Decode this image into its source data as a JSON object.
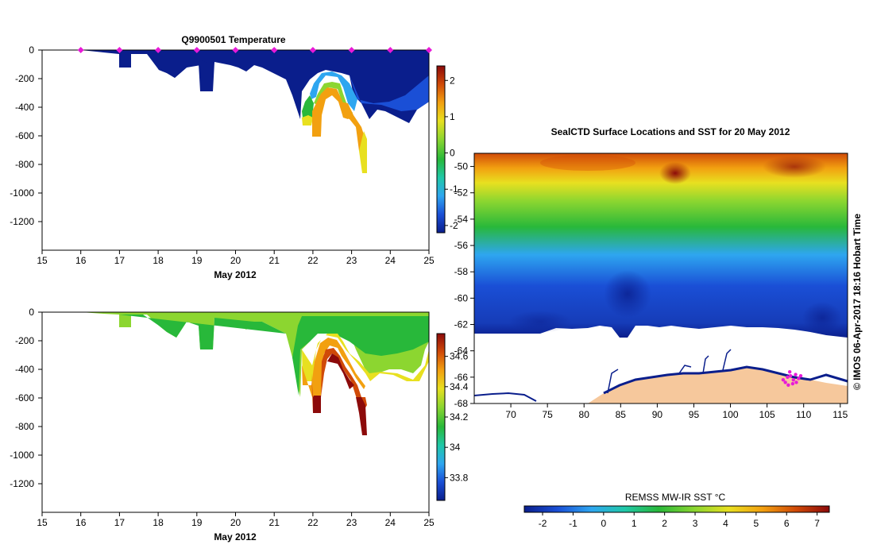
{
  "chart_data": [
    {
      "id": "top",
      "type": "heatmap",
      "title": "Q9900501  Temperature",
      "xlabel": "May 2012",
      "ylabel": "",
      "xlim": [
        15,
        25
      ],
      "ylim": [
        -1400,
        0
      ],
      "xticks": [
        "15",
        "16",
        "17",
        "18",
        "19",
        "20",
        "21",
        "22",
        "23",
        "24",
        "25"
      ],
      "yticks": [
        "0",
        "-200",
        "-400",
        "-600",
        "-800",
        "-1000",
        "-1200"
      ],
      "ytick_values": [
        0,
        -200,
        -400,
        -600,
        -800,
        -1000,
        -1200
      ],
      "colorbar": {
        "min": -2.2,
        "max": 2.4,
        "ticks": [
          "-2",
          "-1",
          "0",
          "1",
          "2"
        ],
        "tick_values": [
          -2,
          -1,
          0,
          1,
          2
        ]
      },
      "markers_x": [
        16,
        17,
        18,
        19,
        20,
        21,
        22,
        23,
        24,
        25
      ]
    },
    {
      "id": "bottom",
      "type": "heatmap",
      "title": "",
      "xlabel": "May 2012",
      "ylabel": "",
      "xlim": [
        15,
        25
      ],
      "ylim": [
        -1400,
        0
      ],
      "xticks": [
        "15",
        "16",
        "17",
        "18",
        "19",
        "20",
        "21",
        "22",
        "23",
        "24",
        "25"
      ],
      "yticks": [
        "0",
        "-200",
        "-400",
        "-600",
        "-800",
        "-1000",
        "-1200"
      ],
      "ytick_values": [
        0,
        -200,
        -400,
        -600,
        -800,
        -1000,
        -1200
      ],
      "colorbar": {
        "min": 33.65,
        "max": 34.75,
        "ticks": [
          "33.8",
          "34",
          "34.2",
          "34.4",
          "34.6"
        ],
        "tick_values": [
          33.8,
          34.0,
          34.2,
          34.4,
          34.6
        ]
      }
    },
    {
      "id": "map",
      "type": "heatmap",
      "title": "SealCTD Surface Locations and SST for 20 May 2012",
      "xlim": [
        65,
        116
      ],
      "ylim": [
        -68,
        -49
      ],
      "xticks": [
        "70",
        "75",
        "80",
        "85",
        "90",
        "95",
        "100",
        "105",
        "110",
        "115"
      ],
      "xtick_values": [
        70,
        75,
        80,
        85,
        90,
        95,
        100,
        105,
        110,
        115
      ],
      "yticks": [
        "-50",
        "-52",
        "-54",
        "-56",
        "-58",
        "-60",
        "-62",
        "-64",
        "-66",
        "-68"
      ],
      "ytick_values": [
        -50,
        -52,
        -54,
        -56,
        -58,
        -60,
        -62,
        -64,
        -66,
        -68
      ],
      "colorbar": {
        "label": "REMSS MW-IR SST °C",
        "min": -2.6,
        "max": 7.4,
        "ticks": [
          "-2",
          "-1",
          "0",
          "1",
          "2",
          "3",
          "4",
          "5",
          "6",
          "7"
        ],
        "tick_values": [
          -2,
          -1,
          0,
          1,
          2,
          3,
          4,
          5,
          6,
          7
        ]
      },
      "credit": "© IMOS 06-Apr-2017 18:16 Hobart Time"
    }
  ],
  "colors": {
    "ramp": [
      "#0a1e8c",
      "#1a4fd6",
      "#2ea6f0",
      "#20c8a8",
      "#28b83a",
      "#8cd630",
      "#e8e020",
      "#f2a010",
      "#d04a08",
      "#8c0a0a"
    ],
    "land": "#f6c89c",
    "marker": "#e81ad8"
  }
}
